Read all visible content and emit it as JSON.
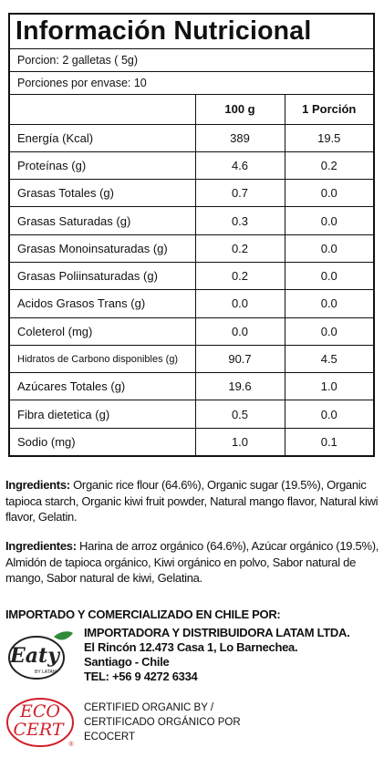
{
  "table": {
    "title": "Información Nutricional",
    "serving": "Porcion: 2 galletas ( 5g)",
    "servings_per_pack": "Porciones por envase: 10",
    "columns": [
      "100 g",
      "1 Porción"
    ],
    "rows": [
      [
        "Energía (Kcal)",
        "389",
        "19.5"
      ],
      [
        "Proteínas (g)",
        "4.6",
        "0.2"
      ],
      [
        "Grasas Totales (g)",
        "0.7",
        "0.0"
      ],
      [
        "Grasas Saturadas (g)",
        "0.3",
        "0.0"
      ],
      [
        "Grasas Monoinsaturadas (g)",
        "0.2",
        "0.0"
      ],
      [
        "Grasas Poliinsaturadas (g)",
        "0.2",
        "0.0"
      ],
      [
        "Acidos Grasos Trans (g)",
        "0.0",
        "0.0"
      ],
      [
        "Coleterol (mg)",
        "0.0",
        "0.0"
      ],
      [
        "Hidratos de Carbono disponibles (g)",
        "90.7",
        "4.5"
      ],
      [
        "Azúcares Totales (g)",
        "19.6",
        "1.0"
      ],
      [
        "Fibra dietetica (g)",
        "0.5",
        "0.0"
      ],
      [
        "Sodio (mg)",
        "1.0",
        "0.1"
      ]
    ]
  },
  "ingredients_en": {
    "label": "Ingredients:",
    "text": "Organic rice flour (64.6%), Organic sugar (19.5%), Organic tapioca starch, Organic kiwi fruit powder, Natural mango flavor, Natural kiwi flavor, Gelatin."
  },
  "ingredients_es": {
    "label": "Ingredientes:",
    "text": "Harina de arroz orgánico (64.6%), Azúcar orgánico (19.5%), Almidón de tapioca orgánico, Kiwi orgánico en polvo, Sabor natural de mango, Sabor natural de kiwi, Gelatina."
  },
  "importer": {
    "heading": "IMPORTADO Y COMERCIALIZADO EN CHILE POR:",
    "lines": [
      "IMPORTADORA Y DISTRIBUIDORA LATAM LTDA.",
      "El Rincón 12.473 Casa 1, Lo Barnechea.",
      "Santiago - Chile",
      "TEL: +56 9 4272 6334"
    ],
    "logo": {
      "text": "Eaty",
      "sub": "BY LATAM"
    }
  },
  "certification": {
    "lines": [
      "CERTIFIED ORGANIC BY /",
      "CERTIFICADO ORGÁNICO POR",
      "ECOCERT"
    ],
    "logo": {
      "top": "ECO",
      "bottom": "CERT",
      "mark": "®"
    }
  }
}
